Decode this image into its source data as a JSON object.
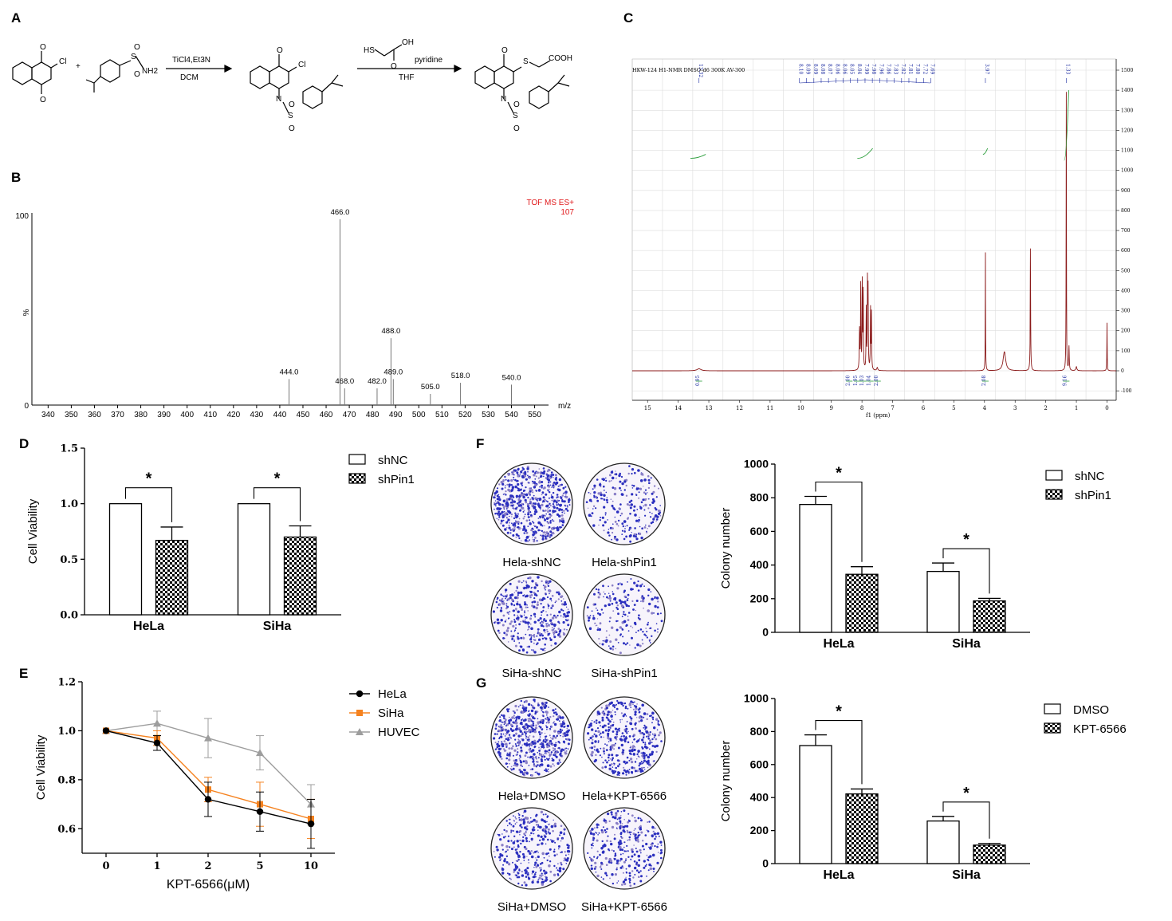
{
  "panels": {
    "A": "A",
    "B": "B",
    "C": "C",
    "D": "D",
    "E": "E",
    "F": "F",
    "G": "G"
  },
  "scheme": {
    "reagents1_top": "TiCl4,Et3N",
    "reagents1_bottom": "DCM",
    "reagents2_top": "pyridine",
    "reagents2_bottom": "THF",
    "labels": {
      "cl": "Cl",
      "nh2": "NH2",
      "s": "S",
      "o": "O",
      "n": "N",
      "cooh": "COOH",
      "oh": "OH",
      "hs": "HS",
      "plus": "+"
    }
  },
  "ms": {
    "mode": "TOF MS ES+",
    "count": "107",
    "ytop": "100",
    "ybottom": "0",
    "ylabel": "%",
    "xlabel": "m/z",
    "xticks": [
      340,
      350,
      360,
      370,
      380,
      390,
      400,
      410,
      420,
      430,
      440,
      450,
      460,
      470,
      480,
      490,
      500,
      510,
      520,
      530,
      540,
      550
    ],
    "peaks": [
      {
        "mz": 466.0,
        "rel": 100,
        "label": "466.0"
      },
      {
        "mz": 488.0,
        "rel": 36,
        "label": "488.0"
      },
      {
        "mz": 444.0,
        "rel": 14,
        "label": "444.0"
      },
      {
        "mz": 468.0,
        "rel": 9,
        "label": "468.0"
      },
      {
        "mz": 482.0,
        "rel": 9,
        "label": "482.0"
      },
      {
        "mz": 489.0,
        "rel": 14,
        "label": "489.0"
      },
      {
        "mz": 505.0,
        "rel": 6,
        "label": "505.0"
      },
      {
        "mz": 518.0,
        "rel": 12,
        "label": "518.0"
      },
      {
        "mz": 540.0,
        "rel": 11,
        "label": "540.0"
      }
    ]
  },
  "nmr": {
    "header": "HKW-124  H1-NMR   DMSO-d6  300K  AV-300",
    "shift_labels_left": [
      "13.32"
    ],
    "shift_labels_mid": [
      "8.10",
      "8.09",
      "8.09",
      "8.08",
      "8.07",
      "8.06",
      "8.06",
      "8.05",
      "8.04",
      "7.99",
      "7.98",
      "7.96",
      "7.86",
      "7.83",
      "7.82",
      "7.81",
      "7.80",
      "7.72",
      "7.69"
    ],
    "shift_labels_right1": [
      "3.97"
    ],
    "shift_labels_right2": [
      "1.33"
    ],
    "integrals": [
      "0.95",
      "2.00",
      "1.95",
      "1.03",
      "1.04",
      "2.00",
      "2.08",
      "9.16"
    ],
    "xlabel": "f1 (ppm)",
    "xticks": [
      15,
      14,
      13,
      12,
      11,
      10,
      9,
      8,
      7,
      6,
      5,
      4,
      3,
      2,
      1,
      0
    ],
    "yticks": [
      1500,
      1400,
      1300,
      1200,
      1100,
      1000,
      900,
      800,
      700,
      600,
      500,
      400,
      300,
      200,
      100,
      0,
      -100
    ]
  },
  "chart_data": [
    {
      "panel": "D",
      "type": "bar",
      "categories": [
        "HeLa",
        "SiHa"
      ],
      "series": [
        {
          "name": "shNC",
          "values": [
            1.0,
            1.0
          ],
          "errors": [
            0,
            0
          ]
        },
        {
          "name": "shPin1",
          "values": [
            0.67,
            0.7
          ],
          "errors": [
            0.12,
            0.1
          ]
        }
      ],
      "ylabel": "Cell Viability",
      "ylim": [
        0,
        1.5
      ],
      "yticks": [
        "0.0",
        "0.5",
        "1.0",
        "1.5"
      ],
      "significance": [
        "*",
        "*"
      ]
    },
    {
      "panel": "E",
      "type": "line",
      "x": [
        "0",
        "1",
        "2",
        "5",
        "10"
      ],
      "series": [
        {
          "name": "HeLa",
          "color": "#000000",
          "values": [
            1.0,
            0.95,
            0.72,
            0.67,
            0.62
          ],
          "errors": [
            0,
            0.03,
            0.07,
            0.08,
            0.1
          ]
        },
        {
          "name": "SiHa",
          "color": "#f5821f",
          "values": [
            1.0,
            0.97,
            0.76,
            0.7,
            0.64
          ],
          "errors": [
            0,
            0.03,
            0.05,
            0.09,
            0.08
          ]
        },
        {
          "name": "HUVEC",
          "color": "#9d9d9d",
          "values": [
            1.0,
            1.03,
            0.97,
            0.91,
            0.7
          ],
          "errors": [
            0,
            0.05,
            0.08,
            0.07,
            0.08
          ]
        }
      ],
      "xlabel": "KPT-6566(μM)",
      "ylabel": "Cell Viability",
      "ylim": [
        0.5,
        1.2
      ],
      "yticks": [
        "0.6",
        "0.8",
        "1.0",
        "1.2"
      ]
    },
    {
      "panel": "F",
      "type": "bar",
      "categories": [
        "HeLa",
        "SiHa"
      ],
      "series": [
        {
          "name": "shNC",
          "values": [
            760,
            362
          ],
          "errors": [
            48,
            50
          ]
        },
        {
          "name": "shPin1",
          "values": [
            345,
            187
          ],
          "errors": [
            45,
            15
          ]
        }
      ],
      "ylabel": "Colony number",
      "ylim": [
        0,
        1000
      ],
      "yticks": [
        "0",
        "200",
        "400",
        "600",
        "800",
        "1000"
      ],
      "significance": [
        "*",
        "*"
      ]
    },
    {
      "panel": "G",
      "type": "bar",
      "categories": [
        "HeLa",
        "SiHa"
      ],
      "series": [
        {
          "name": "DMSO",
          "values": [
            715,
            258
          ],
          "errors": [
            65,
            28
          ]
        },
        {
          "name": "KPT-6566",
          "values": [
            422,
            112
          ],
          "errors": [
            30,
            10
          ]
        }
      ],
      "ylabel": "Colony number",
      "ylim": [
        0,
        1000
      ],
      "yticks": [
        "0",
        "200",
        "400",
        "600",
        "800",
        "1000"
      ],
      "significance": [
        "*",
        "*"
      ]
    }
  ],
  "colony_labels": {
    "F": [
      "Hela-shNC",
      "Hela-shPin1",
      "SiHa-shNC",
      "SiHa-shPin1"
    ],
    "G": [
      "Hela+DMSO",
      "Hela+KPT-6566",
      "SiHa+DMSO",
      "SiHa+KPT-6566"
    ]
  },
  "colony_density": {
    "F": [
      0.95,
      0.35,
      0.55,
      0.3
    ],
    "G": [
      0.9,
      0.6,
      0.5,
      0.45
    ]
  }
}
